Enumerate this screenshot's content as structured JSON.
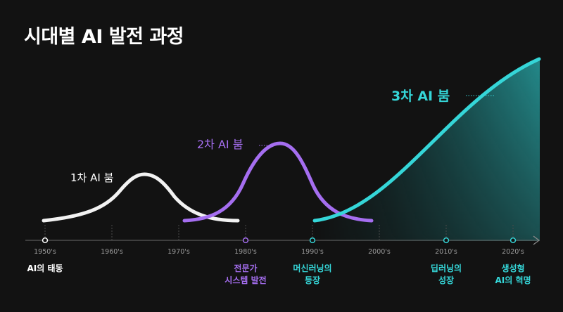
{
  "title": "시대별 AI 발전 과정",
  "timeline": {
    "ticks": [
      "1950's",
      "1960's",
      "1970's",
      "1980's",
      "1990's",
      "2000's",
      "2010's",
      "2020's"
    ]
  },
  "booms": [
    {
      "label": "1차 AI 붐",
      "color": "#ffffff"
    },
    {
      "label": "2차 AI 붐",
      "color": "#a56ef0"
    },
    {
      "label": "3차 AI 붐",
      "color": "#35d6d8"
    }
  ],
  "milestones": [
    {
      "decade": "1950's",
      "line1": "AI의 태동",
      "line2": "",
      "color": "#ffffff"
    },
    {
      "decade": "1980's",
      "line1": "전문가",
      "line2": "시스템 발전",
      "color": "#a56ef0"
    },
    {
      "decade": "1990's",
      "line1": "머신러닝의",
      "line2": "등장",
      "color": "#35d6d8"
    },
    {
      "decade": "2010's",
      "line1": "딥러닝의",
      "line2": "성장",
      "color": "#35d6d8"
    },
    {
      "decade": "2020's",
      "line1": "생성형",
      "line2": "AI의 혁명",
      "color": "#35d6d8"
    }
  ]
}
